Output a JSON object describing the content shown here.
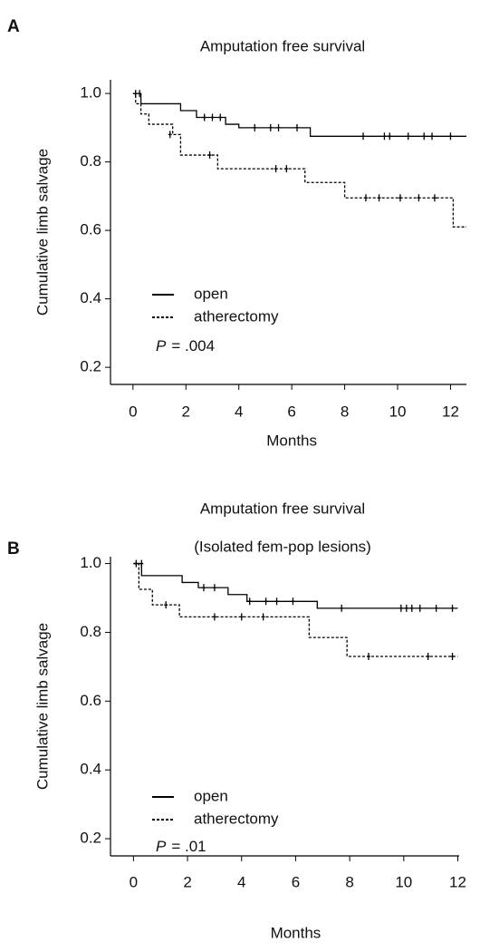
{
  "chart_data": [
    {
      "type": "line",
      "panel_label": "A",
      "title": "Amputation free survival",
      "x_label": "Months",
      "y_label": "Cumulative limb salvage",
      "annotation": {
        "italic": "P",
        "text": "= .004"
      },
      "xlim": [
        -0.85,
        12.6
      ],
      "xticks": [
        0,
        2,
        4,
        6,
        8,
        10,
        12
      ],
      "ylim": [
        0.15,
        1.04
      ],
      "yticks": [
        {
          "value": 0.2,
          "label": "0.2"
        },
        {
          "value": 0.4,
          "label": "0.4"
        },
        {
          "value": 0.6,
          "label": "0.6"
        },
        {
          "value": 0.8,
          "label": "0.8"
        },
        {
          "value": 1.0,
          "label": "1.0"
        }
      ],
      "legend": "lower left",
      "series": [
        {
          "name": "open",
          "color": "#000000",
          "style": "solid",
          "x": [
            0,
            0.3,
            0.3,
            1.8,
            1.8,
            2.4,
            2.4,
            3.5,
            3.5,
            4.0,
            4.0,
            6.7,
            6.7,
            12.6
          ],
          "values": [
            1.0,
            1.0,
            0.97,
            0.97,
            0.95,
            0.95,
            0.93,
            0.93,
            0.91,
            0.91,
            0.9,
            0.9,
            0.875,
            0.875
          ],
          "censored": {
            "x": [
              0.1,
              0.25,
              2.7,
              3.0,
              3.3,
              4.6,
              5.2,
              5.5,
              6.2,
              8.7,
              9.5,
              9.7,
              10.4,
              11.0,
              11.3,
              12.0
            ],
            "values": [
              1.0,
              1.0,
              0.93,
              0.93,
              0.93,
              0.9,
              0.9,
              0.9,
              0.9,
              0.875,
              0.875,
              0.875,
              0.875,
              0.875,
              0.875,
              0.875
            ]
          }
        },
        {
          "name": "atherectomy",
          "color": "#000000",
          "style": "dotted",
          "x": [
            0,
            0.1,
            0.1,
            0.3,
            0.3,
            0.6,
            0.6,
            1.5,
            1.5,
            1.8,
            1.8,
            3.2,
            3.2,
            6.5,
            6.5,
            8.0,
            8.0,
            12.1,
            12.1,
            12.6
          ],
          "values": [
            1.0,
            1.0,
            0.97,
            0.97,
            0.94,
            0.94,
            0.91,
            0.91,
            0.88,
            0.88,
            0.82,
            0.82,
            0.78,
            0.78,
            0.74,
            0.74,
            0.695,
            0.695,
            0.61,
            0.61
          ],
          "censored": {
            "x": [
              1.4,
              2.9,
              5.4,
              5.8,
              8.8,
              9.3,
              10.1,
              10.8,
              11.4
            ],
            "values": [
              0.88,
              0.82,
              0.78,
              0.78,
              0.695,
              0.695,
              0.695,
              0.695,
              0.695
            ]
          }
        }
      ]
    },
    {
      "type": "line",
      "panel_label": "B",
      "title": "Amputation free survival",
      "subtitle": "(Isolated fem-pop lesions)",
      "x_label": "Months",
      "y_label": "Cumulative limb salvage",
      "annotation": {
        "italic": "P",
        "text": "= .01"
      },
      "xlim": [
        -0.85,
        12.05
      ],
      "xticks": [
        0,
        2,
        4,
        6,
        8,
        10,
        12
      ],
      "ylim": [
        0.15,
        1.02
      ],
      "yticks": [
        {
          "value": 0.2,
          "label": "0.2"
        },
        {
          "value": 0.4,
          "label": "0.4"
        },
        {
          "value": 0.6,
          "label": "0.6"
        },
        {
          "value": 0.8,
          "label": "0.8"
        },
        {
          "value": 1.0,
          "label": "1.0"
        }
      ],
      "legend": "lower left",
      "series": [
        {
          "name": "open",
          "color": "#000000",
          "style": "solid",
          "x": [
            0,
            0.3,
            0.3,
            1.8,
            1.8,
            2.4,
            2.4,
            3.5,
            3.5,
            4.2,
            4.2,
            6.8,
            6.8,
            12.0
          ],
          "values": [
            1.0,
            1.0,
            0.965,
            0.965,
            0.945,
            0.945,
            0.93,
            0.93,
            0.91,
            0.91,
            0.89,
            0.89,
            0.87,
            0.87
          ],
          "censored": {
            "x": [
              0.1,
              2.6,
              3.0,
              4.3,
              4.9,
              5.3,
              5.9,
              7.7,
              9.9,
              10.1,
              10.3,
              10.6,
              11.2,
              11.8
            ],
            "values": [
              1.0,
              0.93,
              0.93,
              0.89,
              0.89,
              0.89,
              0.89,
              0.87,
              0.87,
              0.87,
              0.87,
              0.87,
              0.87,
              0.87
            ]
          }
        },
        {
          "name": "atherectomy",
          "color": "#000000",
          "style": "dotted",
          "x": [
            0,
            0.2,
            0.2,
            0.7,
            0.7,
            1.7,
            1.7,
            6.5,
            6.5,
            7.9,
            7.9,
            12.0
          ],
          "values": [
            1.0,
            1.0,
            0.925,
            0.925,
            0.88,
            0.88,
            0.845,
            0.845,
            0.785,
            0.785,
            0.73,
            0.73
          ],
          "censored": {
            "x": [
              0.3,
              1.2,
              3.0,
              4.0,
              4.8,
              8.7,
              10.9,
              11.8
            ],
            "values": [
              1.0,
              0.88,
              0.845,
              0.845,
              0.845,
              0.73,
              0.73,
              0.73
            ]
          }
        }
      ]
    }
  ]
}
